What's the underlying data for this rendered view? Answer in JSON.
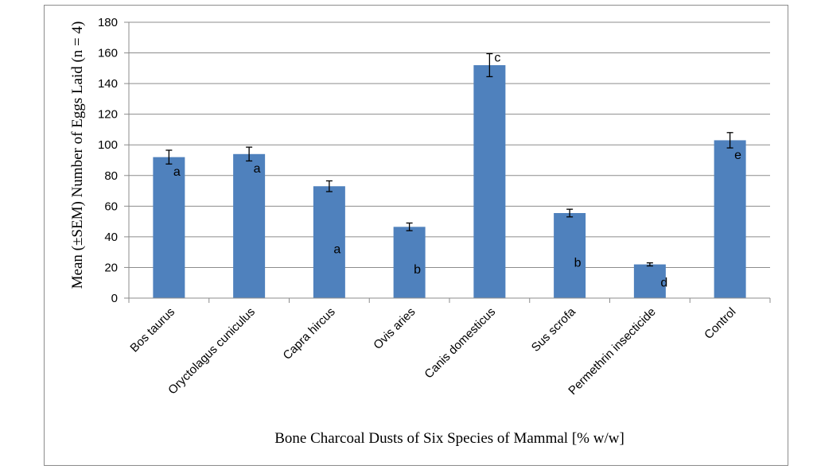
{
  "chart_data": {
    "type": "bar",
    "title": "",
    "xlabel": "Bone Charcoal Dusts of Six Species of Mammal [% w/w]",
    "ylabel": "Mean (±SEM) Number of Eggs Laid (n = 4)",
    "ylim": [
      0,
      180
    ],
    "yticks": [
      "0",
      "20",
      "40",
      "60",
      "80",
      "100",
      "120",
      "140",
      "160",
      "180"
    ],
    "grid": true,
    "legend": "none",
    "categories": [
      "Bos taurus",
      "Oryctolagus cuniculus",
      "Capra hircus",
      "Ovis aries",
      "Canis domesticus",
      "Sus scrofa",
      "Permethrin insecticide",
      "Control"
    ],
    "series": [
      {
        "values": [
          92,
          94,
          73,
          46.5,
          152,
          55.5,
          22,
          103
        ],
        "errors": [
          4.5,
          4.5,
          3.5,
          2.5,
          7.5,
          2.5,
          1,
          5
        ],
        "significance": [
          "a",
          "a",
          "a",
          "b",
          "c",
          "b",
          "d",
          "e"
        ]
      }
    ],
    "colors": {
      "bar": "#4f81bd",
      "grid": "#8c8c8c",
      "axis": "#8c8c8c"
    }
  }
}
